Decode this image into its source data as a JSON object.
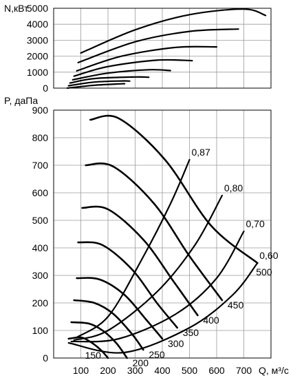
{
  "chart_data": [
    {
      "type": "line",
      "ylabel": "N,кВт",
      "y_ticks": [
        "0",
        "1000",
        "2000",
        "3000",
        "4000",
        "5000"
      ],
      "ylim": [
        0,
        5000
      ],
      "xlim": [
        0,
        800
      ],
      "grid": true,
      "series": [
        {
          "values": [
            [
              100,
              2200
            ],
            [
              300,
              3650
            ],
            [
              500,
              4600
            ],
            [
              700,
              4950
            ],
            [
              780,
              4550
            ]
          ]
        },
        {
          "values": [
            [
              90,
              1600
            ],
            [
              300,
              2900
            ],
            [
              500,
              3550
            ],
            [
              680,
              3700
            ]
          ]
        },
        {
          "values": [
            [
              85,
              1080
            ],
            [
              250,
              2000
            ],
            [
              450,
              2550
            ],
            [
              600,
              2580
            ]
          ]
        },
        {
          "values": [
            [
              75,
              750
            ],
            [
              200,
              1350
            ],
            [
              380,
              1750
            ],
            [
              510,
              1720
            ]
          ]
        },
        {
          "values": [
            [
              70,
              520
            ],
            [
              200,
              940
            ],
            [
              350,
              1150
            ],
            [
              430,
              1100
            ]
          ]
        },
        {
          "values": [
            [
              60,
              320
            ],
            [
              150,
              600
            ],
            [
              300,
              700
            ],
            [
              350,
              680
            ]
          ]
        },
        {
          "values": [
            [
              55,
              150
            ],
            [
              150,
              380
            ],
            [
              250,
              450
            ],
            [
              280,
              440
            ]
          ]
        },
        {
          "values": [
            [
              50,
              0
            ],
            [
              150,
              180
            ],
            [
              250,
              270
            ],
            [
              260,
              270
            ]
          ]
        }
      ]
    },
    {
      "type": "line",
      "xlabel": "Q, м³/с",
      "ylabel": "P, даПа",
      "x_ticks": [
        "100",
        "200",
        "300",
        "400",
        "500",
        "600",
        "700"
      ],
      "y_ticks": [
        "0",
        "100",
        "200",
        "300",
        "400",
        "500",
        "600",
        "700",
        "800",
        "900"
      ],
      "xlim": [
        0,
        800
      ],
      "ylim": [
        0,
        900
      ],
      "grid": true,
      "speed_curves": [
        {
          "label": "150",
          "values": [
            [
              55,
              70
            ],
            [
              100,
              75
            ],
            [
              130,
              62
            ],
            [
              155,
              45
            ],
            [
              178,
              25
            ],
            [
              200,
              0
            ]
          ]
        },
        {
          "label": "200",
          "values": [
            [
              65,
              130
            ],
            [
              130,
              125
            ],
            [
              180,
              100
            ],
            [
              230,
              55
            ],
            [
              270,
              0
            ]
          ]
        },
        {
          "label": "250",
          "values": [
            [
              75,
              210
            ],
            [
              150,
              200
            ],
            [
              220,
              160
            ],
            [
              290,
              85
            ],
            [
              330,
              30
            ]
          ]
        },
        {
          "label": "300",
          "values": [
            [
              85,
              290
            ],
            [
              170,
              285
            ],
            [
              260,
              230
            ],
            [
              340,
              140
            ],
            [
              400,
              70
            ]
          ]
        },
        {
          "label": "350",
          "values": [
            [
              90,
              420
            ],
            [
              180,
              410
            ],
            [
              290,
              320
            ],
            [
              380,
              200
            ],
            [
              455,
              110
            ]
          ]
        },
        {
          "label": "400",
          "values": [
            [
              105,
              545
            ],
            [
              200,
              540
            ],
            [
              330,
              430
            ],
            [
              440,
              280
            ],
            [
              530,
              155
            ]
          ]
        },
        {
          "label": "450",
          "values": [
            [
              118,
              700
            ],
            [
              220,
              695
            ],
            [
              370,
              560
            ],
            [
              500,
              370
            ],
            [
              620,
              210
            ]
          ]
        },
        {
          "label": "500",
          "values": [
            [
              135,
              865
            ],
            [
              240,
              870
            ],
            [
              410,
              720
            ],
            [
              580,
              480
            ],
            [
              750,
              345
            ]
          ]
        }
      ],
      "efficiency_curves": [
        {
          "label": "0,87",
          "values": [
            [
              85,
              75
            ],
            [
              200,
              150
            ],
            [
              320,
              350
            ],
            [
              430,
              560
            ],
            [
              500,
              720
            ]
          ]
        },
        {
          "label": "0,80",
          "values": [
            [
              75,
              65
            ],
            [
              200,
              100
            ],
            [
              380,
              240
            ],
            [
              520,
              410
            ],
            [
              620,
              590
            ]
          ]
        },
        {
          "label": "0,70",
          "values": [
            [
              65,
              60
            ],
            [
              240,
              70
            ],
            [
              450,
              160
            ],
            [
              600,
              290
            ],
            [
              700,
              460
            ]
          ]
        },
        {
          "label": "0,60",
          "values": [
            [
              55,
              55
            ],
            [
              260,
              20
            ],
            [
              500,
              110
            ],
            [
              660,
              230
            ],
            [
              750,
              345
            ]
          ]
        }
      ]
    }
  ]
}
